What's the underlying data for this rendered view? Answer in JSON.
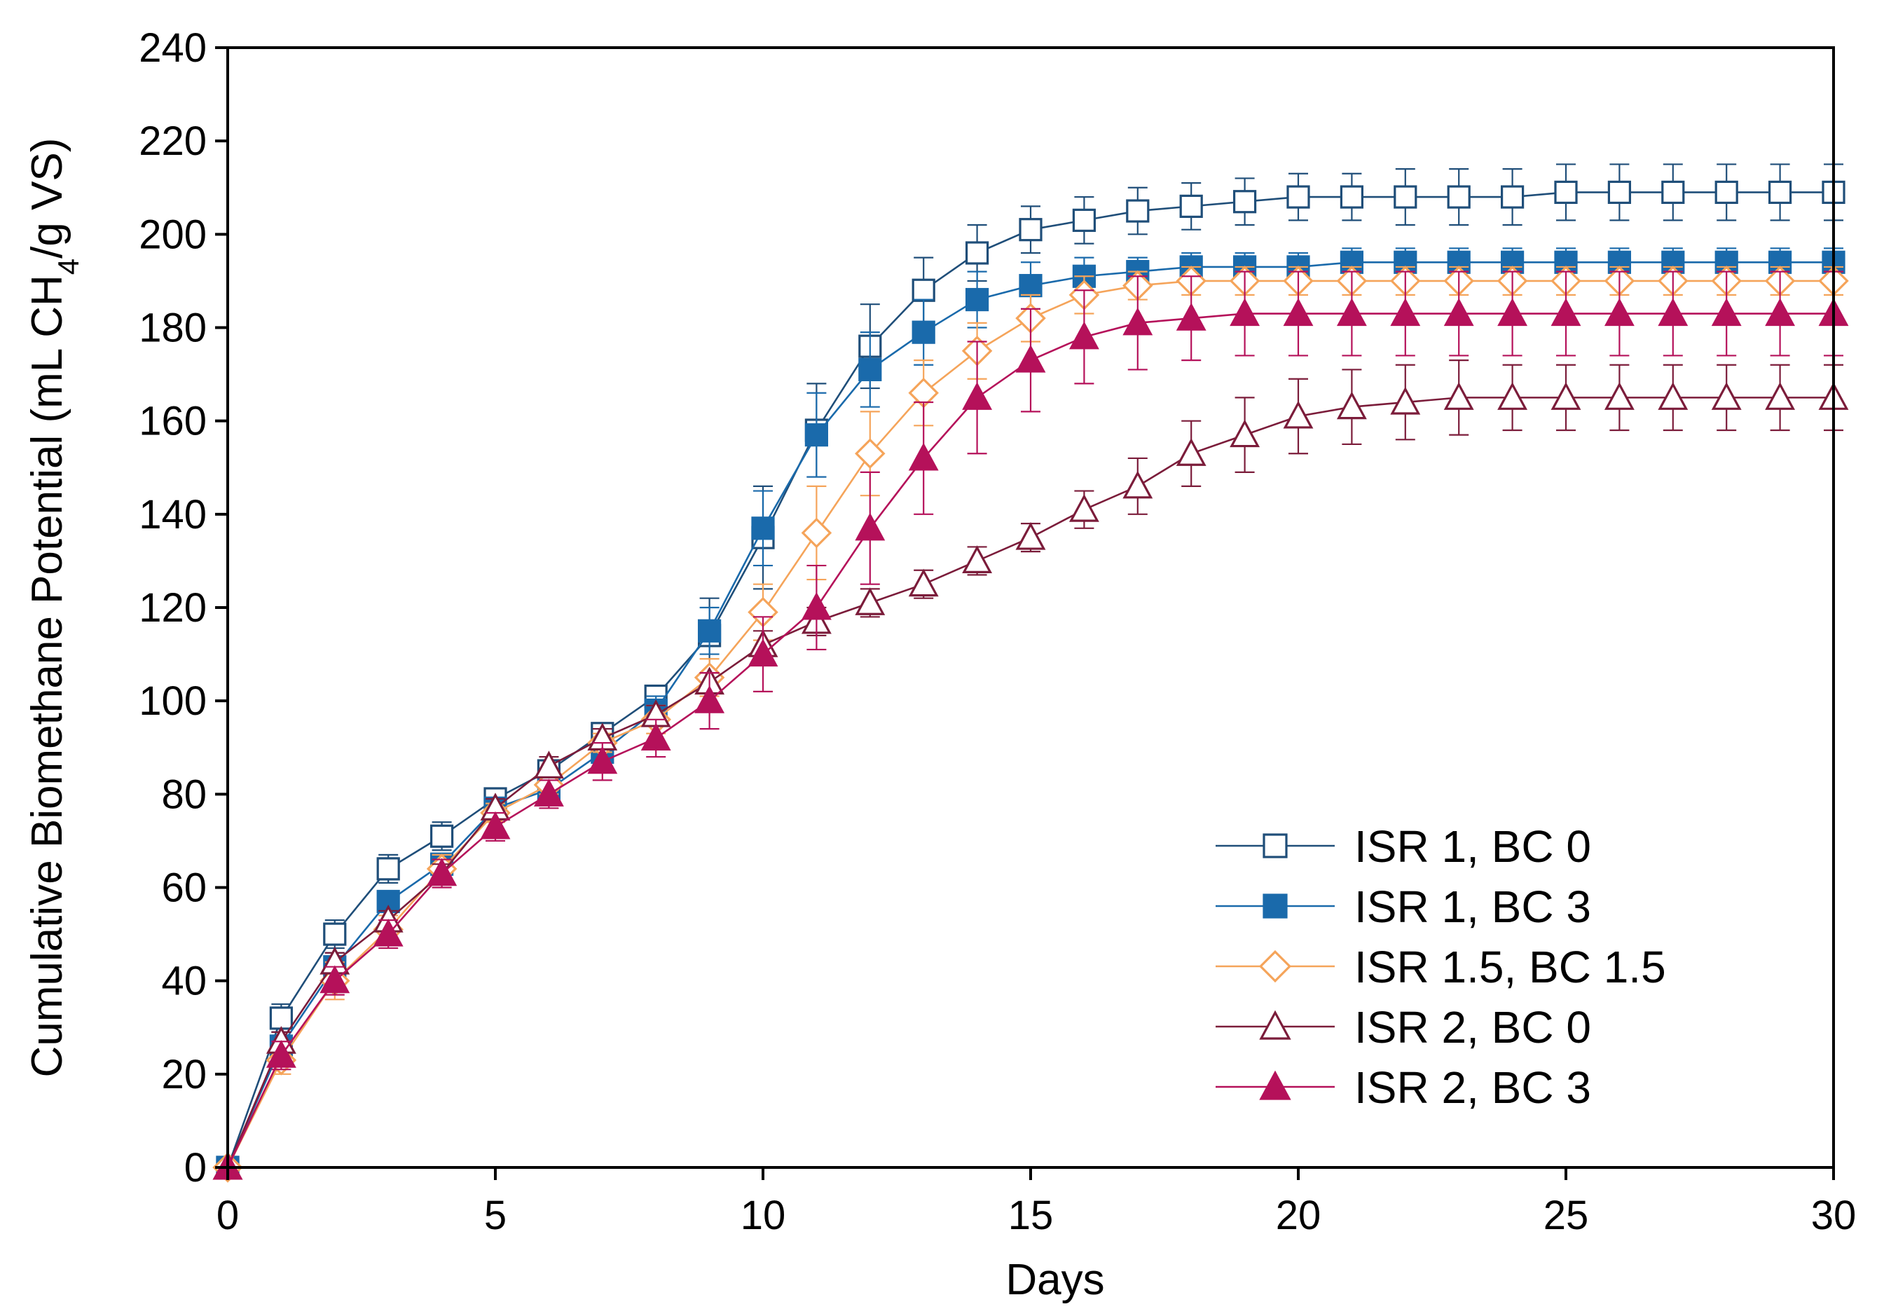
{
  "chart_data": {
    "type": "line",
    "title": "",
    "xlabel": "Days",
    "ylabel_parts": [
      "Cumulative Biomethane Potential (mL CH",
      "4",
      "/g VS)"
    ],
    "xlim": [
      0,
      30
    ],
    "ylim": [
      0,
      240
    ],
    "xticks": [
      0,
      5,
      10,
      15,
      20,
      25,
      30
    ],
    "yticks": [
      0,
      20,
      40,
      60,
      80,
      100,
      120,
      140,
      160,
      180,
      200,
      220,
      240
    ],
    "legend_position": "lower-right",
    "x": [
      0,
      1,
      2,
      3,
      4,
      5,
      6,
      7,
      8,
      9,
      10,
      11,
      12,
      13,
      14,
      15,
      16,
      17,
      18,
      19,
      20,
      21,
      22,
      23,
      24,
      25,
      26,
      27,
      28,
      29,
      30
    ],
    "series": [
      {
        "name": "ISR 1, BC 0",
        "color": "#1f4e79",
        "marker": "square",
        "filled": false,
        "values": [
          0,
          32,
          50,
          64,
          71,
          79,
          85,
          93,
          101,
          114,
          135,
          158,
          176,
          188,
          196,
          201,
          203,
          205,
          206,
          207,
          208,
          208,
          208,
          208,
          208,
          209,
          209,
          209,
          209,
          209,
          209
        ],
        "errors": [
          0,
          3,
          3,
          3,
          3,
          2,
          2,
          2,
          2,
          8,
          11,
          10,
          9,
          7,
          6,
          5,
          5,
          5,
          5,
          5,
          5,
          5,
          6,
          6,
          6,
          6,
          6,
          6,
          6,
          6,
          6
        ]
      },
      {
        "name": "ISR 1, BC 3",
        "color": "#1a6aab",
        "marker": "square",
        "filled": true,
        "values": [
          0,
          26,
          43,
          57,
          65,
          77,
          81,
          89,
          98,
          115,
          137,
          157,
          171,
          179,
          186,
          189,
          191,
          192,
          193,
          193,
          193,
          194,
          194,
          194,
          194,
          194,
          194,
          194,
          194,
          194,
          194
        ],
        "errors": [
          0,
          3,
          3,
          2,
          2,
          2,
          2,
          2,
          3,
          5,
          8,
          9,
          8,
          7,
          6,
          5,
          4,
          3,
          3,
          3,
          3,
          3,
          3,
          3,
          3,
          3,
          3,
          3,
          3,
          3,
          3
        ]
      },
      {
        "name": "ISR 1.5, BC 1.5",
        "color": "#f5a45a",
        "marker": "diamond",
        "filled": false,
        "values": [
          0,
          23,
          40,
          51,
          64,
          76,
          82,
          91,
          96,
          105,
          119,
          136,
          153,
          166,
          175,
          182,
          187,
          189,
          190,
          190,
          190,
          190,
          190,
          190,
          190,
          190,
          190,
          190,
          190,
          190,
          190
        ],
        "errors": [
          0,
          3,
          4,
          3,
          3,
          2,
          2,
          2,
          3,
          4,
          6,
          10,
          9,
          7,
          6,
          5,
          4,
          3,
          3,
          3,
          3,
          3,
          3,
          3,
          3,
          3,
          3,
          3,
          3,
          3,
          3
        ]
      },
      {
        "name": "ISR 2, BC 0",
        "color": "#7b1c3a",
        "marker": "triangle",
        "filled": false,
        "values": [
          0,
          27,
          44,
          53,
          63,
          77,
          86,
          92,
          97,
          104,
          112,
          117,
          121,
          125,
          130,
          135,
          141,
          146,
          153,
          157,
          161,
          163,
          164,
          165,
          165,
          165,
          165,
          165,
          165,
          165,
          165
        ],
        "errors": [
          0,
          2,
          2,
          2,
          2,
          2,
          2,
          2,
          2,
          2,
          3,
          3,
          3,
          3,
          3,
          3,
          4,
          6,
          7,
          8,
          8,
          8,
          8,
          8,
          7,
          7,
          7,
          7,
          7,
          7,
          7
        ]
      },
      {
        "name": "ISR 2, BC 3",
        "color": "#b5115a",
        "marker": "triangle",
        "filled": true,
        "values": [
          0,
          24,
          40,
          50,
          63,
          73,
          80,
          87,
          92,
          100,
          110,
          120,
          137,
          152,
          165,
          173,
          178,
          181,
          182,
          183,
          183,
          183,
          183,
          183,
          183,
          183,
          183,
          183,
          183,
          183,
          183
        ],
        "errors": [
          0,
          3,
          3,
          3,
          3,
          3,
          3,
          4,
          4,
          6,
          8,
          9,
          12,
          12,
          12,
          11,
          10,
          10,
          9,
          9,
          9,
          9,
          9,
          9,
          9,
          9,
          9,
          9,
          9,
          9,
          9
        ]
      }
    ]
  }
}
